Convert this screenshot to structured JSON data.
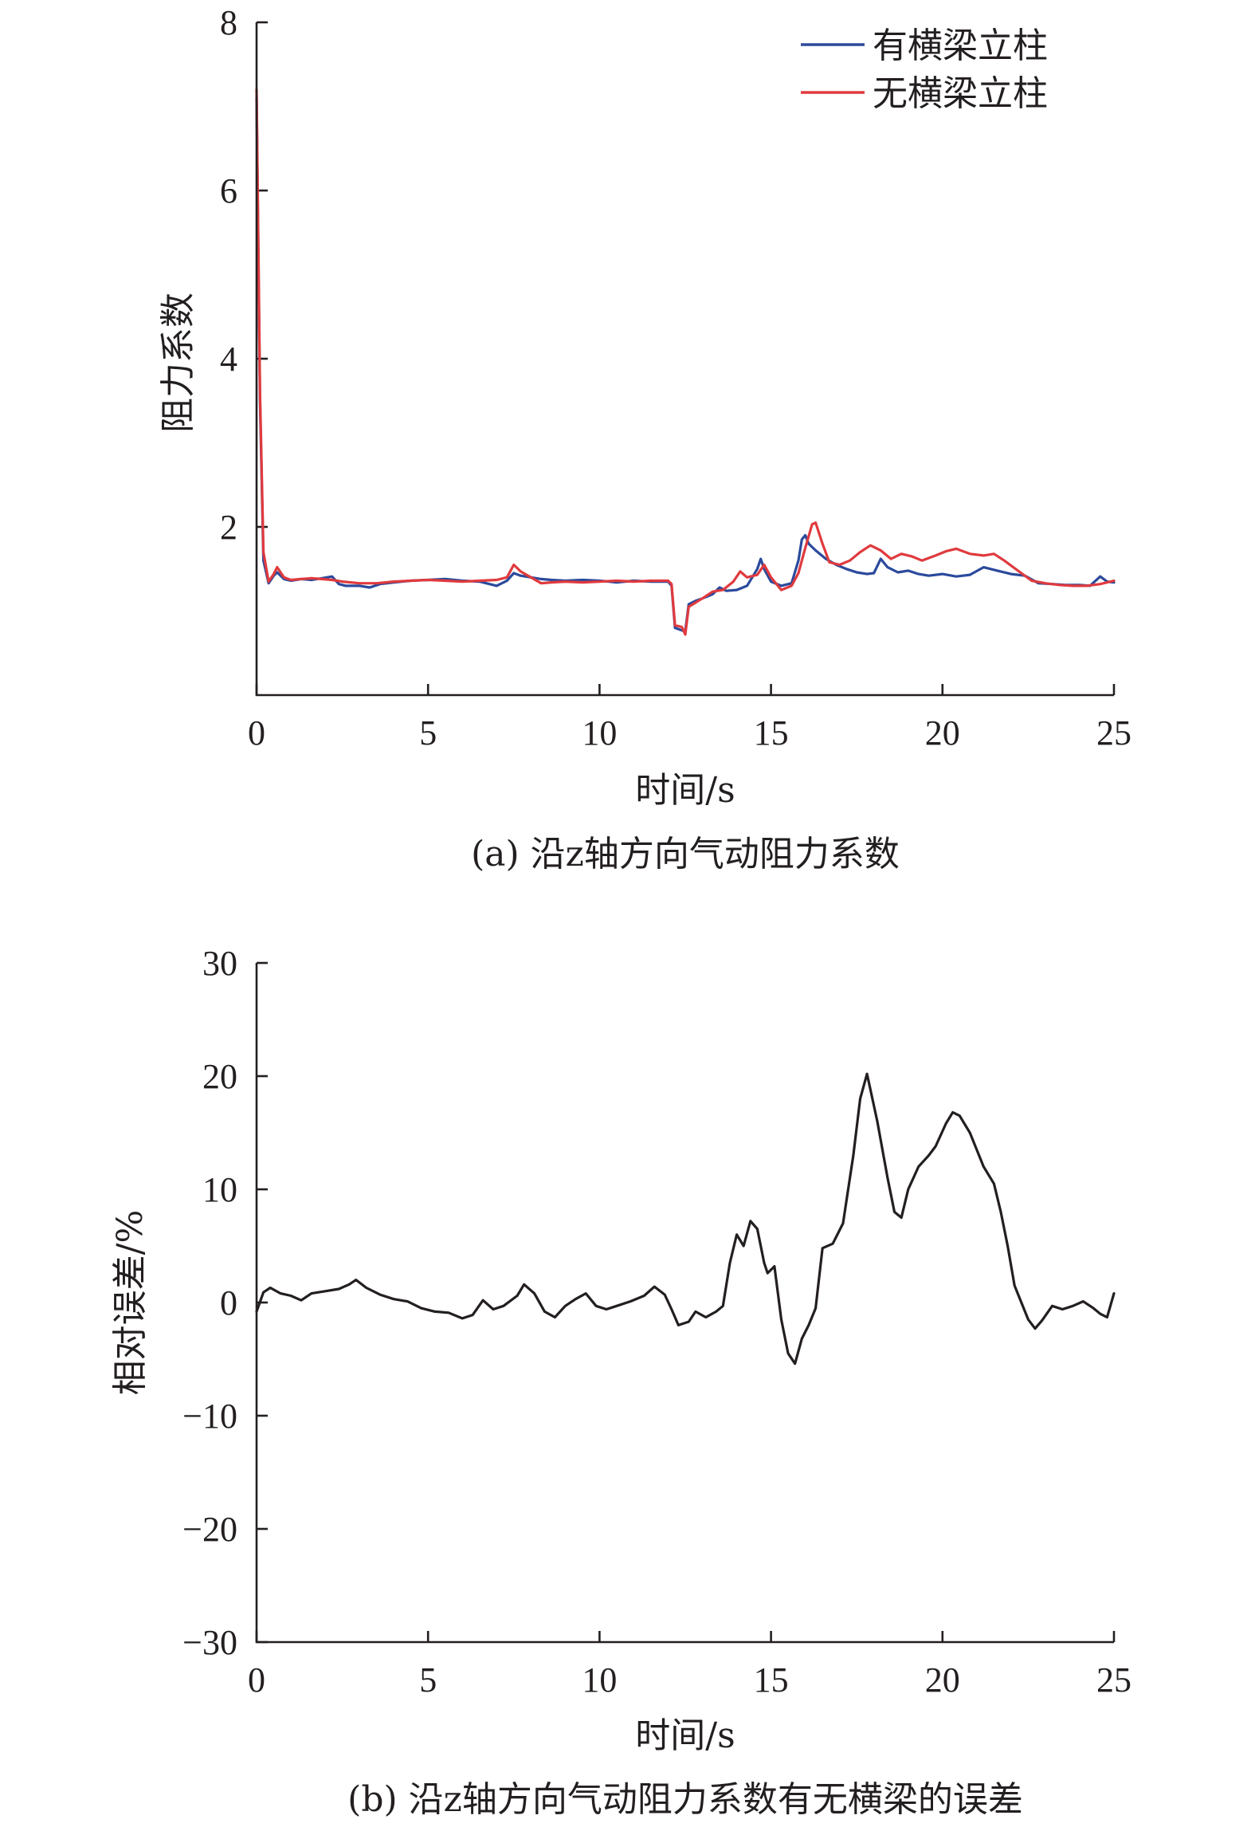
{
  "chart_data": [
    {
      "id": "a",
      "type": "line",
      "caption": "(a) 沿z轴方向气动阻力系数",
      "xlabel": "时间/s",
      "ylabel": "阻力系数",
      "xlim": [
        0,
        25
      ],
      "ylim": [
        0,
        8
      ],
      "xticks": [
        0,
        5,
        10,
        15,
        20,
        25
      ],
      "yticks": [
        2,
        4,
        6,
        8
      ],
      "grid": false,
      "legend_position": "top-right",
      "series": [
        {
          "name": "有横梁立柱",
          "color": "#2b4a9c",
          "points": [
            [
              0,
              7.1
            ],
            [
              0.1,
              3.5
            ],
            [
              0.2,
              1.6
            ],
            [
              0.35,
              1.33
            ],
            [
              0.5,
              1.42
            ],
            [
              0.6,
              1.46
            ],
            [
              0.8,
              1.38
            ],
            [
              1.0,
              1.36
            ],
            [
              1.3,
              1.38
            ],
            [
              1.6,
              1.37
            ],
            [
              1.9,
              1.39
            ],
            [
              2.2,
              1.41
            ],
            [
              2.4,
              1.32
            ],
            [
              2.6,
              1.3
            ],
            [
              3.0,
              1.3
            ],
            [
              3.3,
              1.28
            ],
            [
              3.6,
              1.32
            ],
            [
              4.0,
              1.34
            ],
            [
              4.5,
              1.36
            ],
            [
              5.0,
              1.37
            ],
            [
              5.5,
              1.38
            ],
            [
              6.0,
              1.36
            ],
            [
              6.5,
              1.35
            ],
            [
              7.0,
              1.3
            ],
            [
              7.3,
              1.36
            ],
            [
              7.5,
              1.45
            ],
            [
              7.7,
              1.42
            ],
            [
              8.0,
              1.4
            ],
            [
              8.3,
              1.38
            ],
            [
              8.6,
              1.37
            ],
            [
              9.0,
              1.36
            ],
            [
              9.5,
              1.37
            ],
            [
              10.0,
              1.36
            ],
            [
              10.5,
              1.34
            ],
            [
              11.0,
              1.36
            ],
            [
              11.5,
              1.35
            ],
            [
              12.0,
              1.35
            ],
            [
              12.1,
              1.3
            ],
            [
              12.2,
              0.8
            ],
            [
              12.4,
              0.77
            ],
            [
              12.5,
              0.76
            ],
            [
              12.6,
              1.08
            ],
            [
              12.8,
              1.12
            ],
            [
              13.0,
              1.15
            ],
            [
              13.3,
              1.2
            ],
            [
              13.5,
              1.28
            ],
            [
              13.7,
              1.24
            ],
            [
              14.0,
              1.25
            ],
            [
              14.3,
              1.3
            ],
            [
              14.6,
              1.5
            ],
            [
              14.7,
              1.62
            ],
            [
              14.8,
              1.5
            ],
            [
              15.0,
              1.35
            ],
            [
              15.3,
              1.3
            ],
            [
              15.6,
              1.33
            ],
            [
              15.8,
              1.6
            ],
            [
              15.9,
              1.85
            ],
            [
              16.0,
              1.9
            ],
            [
              16.1,
              1.8
            ],
            [
              16.3,
              1.72
            ],
            [
              16.6,
              1.62
            ],
            [
              16.9,
              1.55
            ],
            [
              17.2,
              1.5
            ],
            [
              17.5,
              1.46
            ],
            [
              17.8,
              1.44
            ],
            [
              18.0,
              1.45
            ],
            [
              18.2,
              1.62
            ],
            [
              18.4,
              1.52
            ],
            [
              18.7,
              1.46
            ],
            [
              19.0,
              1.48
            ],
            [
              19.3,
              1.44
            ],
            [
              19.6,
              1.42
            ],
            [
              20.0,
              1.44
            ],
            [
              20.4,
              1.41
            ],
            [
              20.8,
              1.43
            ],
            [
              21.2,
              1.52
            ],
            [
              21.6,
              1.48
            ],
            [
              22.0,
              1.44
            ],
            [
              22.4,
              1.42
            ],
            [
              22.8,
              1.33
            ],
            [
              23.2,
              1.32
            ],
            [
              23.6,
              1.31
            ],
            [
              24.0,
              1.31
            ],
            [
              24.3,
              1.3
            ],
            [
              24.6,
              1.41
            ],
            [
              24.8,
              1.35
            ],
            [
              25.0,
              1.34
            ]
          ]
        },
        {
          "name": "无横梁立柱",
          "color": "#e03a3e",
          "points": [
            [
              0,
              7.2
            ],
            [
              0.1,
              3.6
            ],
            [
              0.2,
              1.7
            ],
            [
              0.35,
              1.35
            ],
            [
              0.5,
              1.44
            ],
            [
              0.6,
              1.52
            ],
            [
              0.8,
              1.4
            ],
            [
              1.0,
              1.37
            ],
            [
              1.3,
              1.38
            ],
            [
              1.6,
              1.39
            ],
            [
              1.9,
              1.38
            ],
            [
              2.2,
              1.37
            ],
            [
              2.5,
              1.35
            ],
            [
              3.0,
              1.33
            ],
            [
              3.5,
              1.33
            ],
            [
              4.0,
              1.35
            ],
            [
              4.5,
              1.36
            ],
            [
              5.0,
              1.37
            ],
            [
              5.5,
              1.36
            ],
            [
              6.0,
              1.35
            ],
            [
              6.5,
              1.36
            ],
            [
              7.0,
              1.37
            ],
            [
              7.3,
              1.4
            ],
            [
              7.5,
              1.55
            ],
            [
              7.7,
              1.47
            ],
            [
              8.0,
              1.4
            ],
            [
              8.3,
              1.33
            ],
            [
              8.6,
              1.34
            ],
            [
              9.0,
              1.35
            ],
            [
              9.5,
              1.34
            ],
            [
              10.0,
              1.35
            ],
            [
              10.5,
              1.36
            ],
            [
              11.0,
              1.35
            ],
            [
              11.5,
              1.36
            ],
            [
              12.0,
              1.36
            ],
            [
              12.1,
              1.32
            ],
            [
              12.2,
              0.83
            ],
            [
              12.4,
              0.81
            ],
            [
              12.5,
              0.72
            ],
            [
              12.6,
              1.05
            ],
            [
              12.8,
              1.1
            ],
            [
              13.0,
              1.15
            ],
            [
              13.3,
              1.23
            ],
            [
              13.6,
              1.25
            ],
            [
              13.9,
              1.35
            ],
            [
              14.1,
              1.47
            ],
            [
              14.3,
              1.4
            ],
            [
              14.6,
              1.43
            ],
            [
              14.8,
              1.55
            ],
            [
              15.0,
              1.4
            ],
            [
              15.3,
              1.25
            ],
            [
              15.6,
              1.3
            ],
            [
              15.8,
              1.45
            ],
            [
              16.0,
              1.75
            ],
            [
              16.2,
              2.03
            ],
            [
              16.3,
              2.05
            ],
            [
              16.5,
              1.8
            ],
            [
              16.7,
              1.58
            ],
            [
              17.0,
              1.55
            ],
            [
              17.3,
              1.6
            ],
            [
              17.6,
              1.7
            ],
            [
              17.9,
              1.78
            ],
            [
              18.2,
              1.72
            ],
            [
              18.5,
              1.62
            ],
            [
              18.8,
              1.68
            ],
            [
              19.1,
              1.65
            ],
            [
              19.4,
              1.6
            ],
            [
              19.8,
              1.66
            ],
            [
              20.1,
              1.71
            ],
            [
              20.4,
              1.74
            ],
            [
              20.8,
              1.68
            ],
            [
              21.2,
              1.66
            ],
            [
              21.5,
              1.68
            ],
            [
              21.8,
              1.6
            ],
            [
              22.2,
              1.48
            ],
            [
              22.6,
              1.36
            ],
            [
              23.0,
              1.33
            ],
            [
              23.4,
              1.31
            ],
            [
              23.8,
              1.3
            ],
            [
              24.2,
              1.3
            ],
            [
              24.6,
              1.32
            ],
            [
              25.0,
              1.36
            ]
          ]
        }
      ]
    },
    {
      "id": "b",
      "type": "line",
      "caption": "(b) 沿z轴方向气动阻力系数有无横梁的误差",
      "xlabel": "时间/s",
      "ylabel": "相对误差/%",
      "xlim": [
        0,
        25
      ],
      "ylim": [
        -30,
        30
      ],
      "xticks": [
        0,
        5,
        10,
        15,
        20,
        25
      ],
      "yticks": [
        -30,
        -20,
        -10,
        0,
        10,
        20,
        30
      ],
      "grid": false,
      "series": [
        {
          "name": "",
          "color": "#231f20",
          "points": [
            [
              0,
              -0.8
            ],
            [
              0.2,
              0.9
            ],
            [
              0.4,
              1.3
            ],
            [
              0.7,
              0.8
            ],
            [
              1.0,
              0.6
            ],
            [
              1.3,
              0.2
            ],
            [
              1.6,
              0.8
            ],
            [
              2.0,
              1.0
            ],
            [
              2.4,
              1.2
            ],
            [
              2.7,
              1.6
            ],
            [
              2.9,
              2.0
            ],
            [
              3.2,
              1.3
            ],
            [
              3.6,
              0.7
            ],
            [
              4.0,
              0.3
            ],
            [
              4.4,
              0.1
            ],
            [
              4.8,
              -0.5
            ],
            [
              5.2,
              -0.8
            ],
            [
              5.6,
              -0.9
            ],
            [
              6.0,
              -1.4
            ],
            [
              6.3,
              -1.1
            ],
            [
              6.6,
              0.2
            ],
            [
              6.9,
              -0.6
            ],
            [
              7.2,
              -0.3
            ],
            [
              7.6,
              0.6
            ],
            [
              7.8,
              1.6
            ],
            [
              8.1,
              0.8
            ],
            [
              8.4,
              -0.8
            ],
            [
              8.7,
              -1.3
            ],
            [
              9.0,
              -0.3
            ],
            [
              9.3,
              0.3
            ],
            [
              9.6,
              0.8
            ],
            [
              9.9,
              -0.3
            ],
            [
              10.2,
              -0.6
            ],
            [
              10.5,
              -0.3
            ],
            [
              10.9,
              0.1
            ],
            [
              11.3,
              0.6
            ],
            [
              11.6,
              1.4
            ],
            [
              11.9,
              0.7
            ],
            [
              12.1,
              -0.6
            ],
            [
              12.3,
              -2.0
            ],
            [
              12.6,
              -1.7
            ],
            [
              12.8,
              -0.8
            ],
            [
              13.1,
              -1.3
            ],
            [
              13.4,
              -0.8
            ],
            [
              13.6,
              -0.3
            ],
            [
              13.8,
              3.5
            ],
            [
              14.0,
              6.0
            ],
            [
              14.2,
              5.0
            ],
            [
              14.4,
              7.2
            ],
            [
              14.6,
              6.5
            ],
            [
              14.8,
              3.5
            ],
            [
              14.9,
              2.6
            ],
            [
              15.1,
              3.2
            ],
            [
              15.3,
              -1.5
            ],
            [
              15.5,
              -4.5
            ],
            [
              15.7,
              -5.4
            ],
            [
              15.9,
              -3.2
            ],
            [
              16.1,
              -2.0
            ],
            [
              16.3,
              -0.5
            ],
            [
              16.5,
              4.8
            ],
            [
              16.8,
              5.2
            ],
            [
              17.1,
              7.0
            ],
            [
              17.4,
              13.0
            ],
            [
              17.6,
              18.0
            ],
            [
              17.8,
              20.2
            ],
            [
              18.1,
              16.0
            ],
            [
              18.4,
              11.0
            ],
            [
              18.6,
              8.0
            ],
            [
              18.8,
              7.5
            ],
            [
              19.0,
              10.0
            ],
            [
              19.3,
              12.0
            ],
            [
              19.6,
              13.0
            ],
            [
              19.8,
              13.8
            ],
            [
              20.1,
              15.8
            ],
            [
              20.3,
              16.8
            ],
            [
              20.5,
              16.5
            ],
            [
              20.8,
              15.0
            ],
            [
              21.0,
              13.5
            ],
            [
              21.2,
              12.0
            ],
            [
              21.5,
              10.5
            ],
            [
              21.7,
              8.0
            ],
            [
              21.9,
              5.0
            ],
            [
              22.1,
              1.5
            ],
            [
              22.3,
              0.0
            ],
            [
              22.5,
              -1.5
            ],
            [
              22.7,
              -2.3
            ],
            [
              22.9,
              -1.6
            ],
            [
              23.2,
              -0.3
            ],
            [
              23.5,
              -0.6
            ],
            [
              23.8,
              -0.3
            ],
            [
              24.1,
              0.1
            ],
            [
              24.4,
              -0.5
            ],
            [
              24.6,
              -1.0
            ],
            [
              24.8,
              -1.3
            ],
            [
              25.0,
              0.8
            ]
          ]
        }
      ]
    }
  ]
}
